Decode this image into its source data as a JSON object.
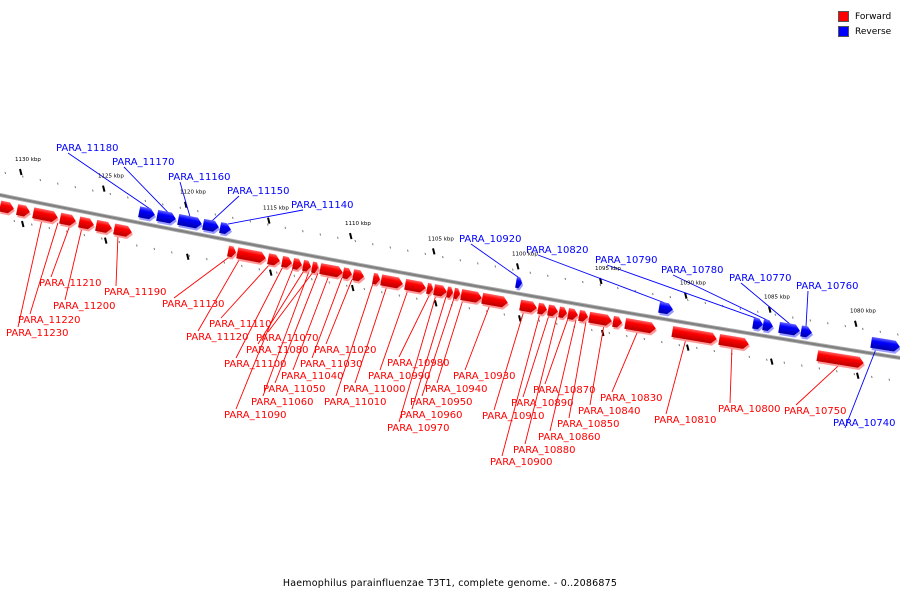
{
  "legend": {
    "forward_label": "Forward",
    "reverse_label": "Reverse",
    "forward_color": "#ff0000",
    "reverse_color": "#0000ff"
  },
  "caption": "Haemophilus parainfluenzae T3T1, complete genome. - 0..2086875",
  "colors": {
    "forward": "#ff0000",
    "reverse": "#0000ff",
    "axis": "#808080"
  },
  "axis": {
    "unit": "kbp",
    "direction": "descending",
    "major_ticks": [
      1130,
      1125,
      1120,
      1115,
      1110,
      1105,
      1100,
      1095,
      1090,
      1085,
      1080
    ],
    "tick_labels": [
      "1130 kbp",
      "1125 kbp",
      "1120 kbp",
      "1115 kbp",
      "1110 kbp",
      "1105 kbp",
      "1100 kbp",
      "1095 kbp",
      "1090 kbp",
      "1085 kbp",
      "1080 kbp"
    ]
  },
  "genes": [
    {
      "label": "PARA_11230",
      "strand": "forward"
    },
    {
      "label": "PARA_11220",
      "strand": "forward"
    },
    {
      "label": "PARA_11210",
      "strand": "forward"
    },
    {
      "label": "PARA_11200",
      "strand": "forward"
    },
    {
      "label": "PARA_11190",
      "strand": "forward"
    },
    {
      "label": "PARA_11180",
      "strand": "reverse"
    },
    {
      "label": "PARA_11170",
      "strand": "reverse"
    },
    {
      "label": "PARA_11160",
      "strand": "reverse"
    },
    {
      "label": "PARA_11150",
      "strand": "reverse"
    },
    {
      "label": "PARA_11140",
      "strand": "reverse"
    },
    {
      "label": "PARA_11130",
      "strand": "forward"
    },
    {
      "label": "PARA_11120",
      "strand": "forward"
    },
    {
      "label": "PARA_11110",
      "strand": "forward"
    },
    {
      "label": "PARA_11100",
      "strand": "forward"
    },
    {
      "label": "PARA_11090",
      "strand": "forward"
    },
    {
      "label": "PARA_11080",
      "strand": "forward"
    },
    {
      "label": "PARA_11070",
      "strand": "forward"
    },
    {
      "label": "PARA_11060",
      "strand": "forward"
    },
    {
      "label": "PARA_11050",
      "strand": "forward"
    },
    {
      "label": "PARA_11040",
      "strand": "forward"
    },
    {
      "label": "PARA_11030",
      "strand": "forward"
    },
    {
      "label": "PARA_11020",
      "strand": "forward"
    },
    {
      "label": "PARA_11010",
      "strand": "forward"
    },
    {
      "label": "PARA_11000",
      "strand": "forward"
    },
    {
      "label": "PARA_10990",
      "strand": "forward"
    },
    {
      "label": "PARA_10980",
      "strand": "forward"
    },
    {
      "label": "PARA_10970",
      "strand": "forward"
    },
    {
      "label": "PARA_10960",
      "strand": "forward"
    },
    {
      "label": "PARA_10950",
      "strand": "forward"
    },
    {
      "label": "PARA_10940",
      "strand": "forward"
    },
    {
      "label": "PARA_10930",
      "strand": "forward"
    },
    {
      "label": "PARA_10920",
      "strand": "reverse"
    },
    {
      "label": "PARA_10910",
      "strand": "forward"
    },
    {
      "label": "PARA_10900",
      "strand": "forward"
    },
    {
      "label": "PARA_10890",
      "strand": "forward"
    },
    {
      "label": "PARA_10880",
      "strand": "forward"
    },
    {
      "label": "PARA_10870",
      "strand": "forward"
    },
    {
      "label": "PARA_10860",
      "strand": "forward"
    },
    {
      "label": "PARA_10850",
      "strand": "forward"
    },
    {
      "label": "PARA_10840",
      "strand": "forward"
    },
    {
      "label": "PARA_10830",
      "strand": "forward"
    },
    {
      "label": "PARA_10820",
      "strand": "reverse"
    },
    {
      "label": "PARA_10810",
      "strand": "forward"
    },
    {
      "label": "PARA_10800",
      "strand": "forward"
    },
    {
      "label": "PARA_10790",
      "strand": "reverse"
    },
    {
      "label": "PARA_10780",
      "strand": "reverse"
    },
    {
      "label": "PARA_10770",
      "strand": "reverse"
    },
    {
      "label": "PARA_10760",
      "strand": "reverse"
    },
    {
      "label": "PARA_10750",
      "strand": "forward"
    },
    {
      "label": "PARA_10740",
      "strand": "reverse"
    }
  ]
}
